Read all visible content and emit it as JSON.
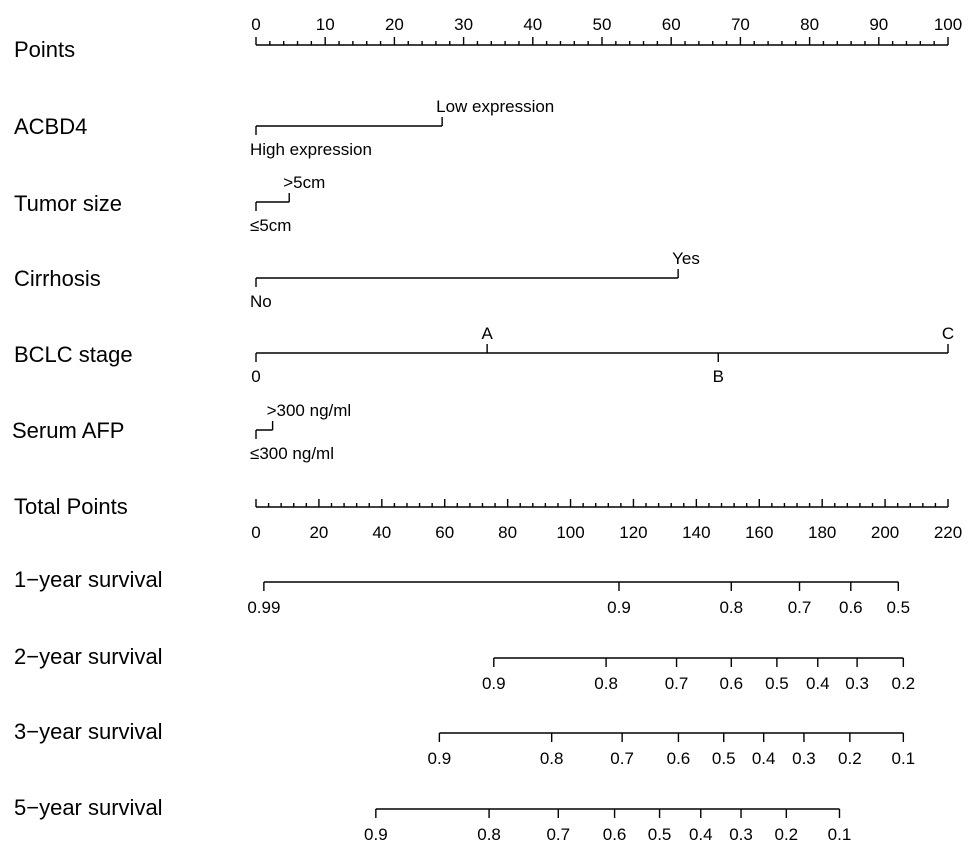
{
  "chart_data": {
    "type": "nomogram",
    "points_axis": {
      "label": "Points",
      "range": [
        0,
        100
      ],
      "major_ticks": [
        0,
        10,
        20,
        30,
        40,
        50,
        60,
        70,
        80,
        90,
        100
      ]
    },
    "variables": [
      {
        "name": "ACBD4",
        "levels": [
          {
            "label": "High expression",
            "points": 0
          },
          {
            "label": "Low expression",
            "points": 26.9
          }
        ]
      },
      {
        "name": "Tumor size",
        "levels": [
          {
            "label": "≤5cm",
            "points": 0
          },
          {
            "label": ">5cm",
            "points": 4.8
          }
        ]
      },
      {
        "name": "Cirrhosis",
        "levels": [
          {
            "label": "No",
            "points": 0
          },
          {
            "label": "Yes",
            "points": 61
          }
        ]
      },
      {
        "name": "BCLC stage",
        "levels": [
          {
            "label": "0",
            "points": 0
          },
          {
            "label": "A",
            "points": 33.4
          },
          {
            "label": "B",
            "points": 66.8
          },
          {
            "label": "C",
            "points": 100
          }
        ]
      },
      {
        "name": "Serum AFP",
        "levels": [
          {
            "label": "≤300 ng/ml",
            "points": 0
          },
          {
            "label": ">300 ng/ml",
            "points": 2.4
          }
        ]
      }
    ],
    "total_points_axis": {
      "label": "Total Points",
      "range": [
        0,
        220
      ],
      "major_ticks": [
        0,
        20,
        40,
        60,
        80,
        100,
        120,
        140,
        160,
        180,
        200,
        220
      ]
    },
    "survival_axes": [
      {
        "name": "1−year survival",
        "ticks": [
          {
            "label": "0.99",
            "total_points": 2.5
          },
          {
            "label": "0.9",
            "total_points": 115.4
          },
          {
            "label": "0.8",
            "total_points": 151.1
          },
          {
            "label": "0.7",
            "total_points": 172.8
          },
          {
            "label": "0.6",
            "total_points": 189.1
          },
          {
            "label": "0.5",
            "total_points": 204.2
          }
        ]
      },
      {
        "name": "2−year survival",
        "ticks": [
          {
            "label": "0.9",
            "total_points": 75.6
          },
          {
            "label": "0.8",
            "total_points": 111.3
          },
          {
            "label": "0.7",
            "total_points": 133.7
          },
          {
            "label": "0.6",
            "total_points": 151.1
          },
          {
            "label": "0.5",
            "total_points": 165.6
          },
          {
            "label": "0.4",
            "total_points": 178.6
          },
          {
            "label": "0.3",
            "total_points": 191.1
          },
          {
            "label": "0.2",
            "total_points": 205.8
          }
        ]
      },
      {
        "name": "3−year survival",
        "ticks": [
          {
            "label": "0.9",
            "total_points": 58.3
          },
          {
            "label": "0.8",
            "total_points": 94.0
          },
          {
            "label": "0.7",
            "total_points": 116.4
          },
          {
            "label": "0.6",
            "total_points": 134.3
          },
          {
            "label": "0.5",
            "total_points": 148.7
          },
          {
            "label": "0.4",
            "total_points": 161.4
          },
          {
            "label": "0.3",
            "total_points": 174.2
          },
          {
            "label": "0.2",
            "total_points": 188.8
          },
          {
            "label": "0.1",
            "total_points": 205.8
          }
        ]
      },
      {
        "name": "5−year survival",
        "ticks": [
          {
            "label": "0.9",
            "total_points": 38.1
          },
          {
            "label": "0.8",
            "total_points": 74.1
          },
          {
            "label": "0.7",
            "total_points": 96.1
          },
          {
            "label": "0.6",
            "total_points": 114.0
          },
          {
            "label": "0.5",
            "total_points": 128.3
          },
          {
            "label": "0.4",
            "total_points": 141.4
          },
          {
            "label": "0.3",
            "total_points": 154.2
          },
          {
            "label": "0.2",
            "total_points": 168.6
          },
          {
            "label": "0.1",
            "total_points": 185.5
          }
        ]
      }
    ]
  }
}
